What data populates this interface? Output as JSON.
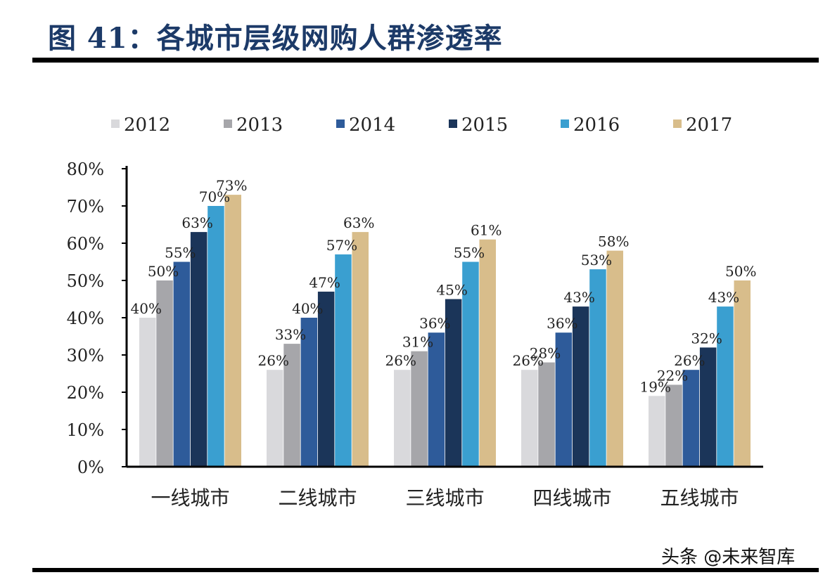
{
  "header": {
    "title": "图 41：各城市层级网购人群渗透率"
  },
  "watermark": "头条 @未来智库",
  "colors": {
    "2012": "#d9d9dc",
    "2013": "#a6a6aa",
    "2014": "#2e5b9a",
    "2015": "#1b3559",
    "2016": "#3a9fd0",
    "2017": "#d8bd8b"
  },
  "chart_data": {
    "type": "bar",
    "categories": [
      "一线城市",
      "二线城市",
      "三线城市",
      "四线城市",
      "五线城市"
    ],
    "series": [
      {
        "name": "2012",
        "values": [
          40,
          26,
          26,
          26,
          19
        ]
      },
      {
        "name": "2013",
        "values": [
          50,
          33,
          31,
          28,
          22
        ]
      },
      {
        "name": "2014",
        "values": [
          55,
          40,
          36,
          36,
          26
        ]
      },
      {
        "name": "2015",
        "values": [
          63,
          47,
          45,
          43,
          32
        ]
      },
      {
        "name": "2016",
        "values": [
          70,
          57,
          55,
          53,
          43
        ]
      },
      {
        "name": "2017",
        "values": [
          73,
          63,
          61,
          58,
          50
        ]
      }
    ],
    "ylim": [
      0,
      80
    ],
    "yticks": [
      "0%",
      "10%",
      "20%",
      "30%",
      "40%",
      "50%",
      "60%",
      "70%",
      "80%"
    ],
    "value_suffix": "%",
    "legend_position": "top",
    "grid": false
  }
}
